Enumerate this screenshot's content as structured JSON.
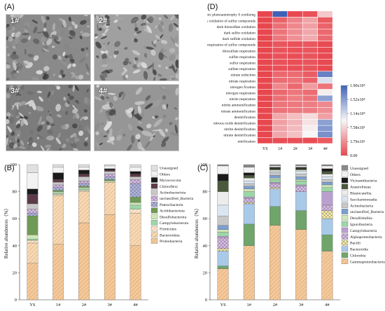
{
  "panels": {
    "a_label": "(A)",
    "b_label": "(B)",
    "c_label": "(C)",
    "d_label": "(D)"
  },
  "sem": {
    "tiles": [
      {
        "id": "1#",
        "tone": "#8a8a8a"
      },
      {
        "id": "2#",
        "tone": "#a0a0a0"
      },
      {
        "id": "3#",
        "tone": "#7c7c7c"
      },
      {
        "id": "4#",
        "tone": "#969696"
      }
    ]
  },
  "chart_data": [
    {
      "panel": "D",
      "type": "heatmap",
      "columns": [
        "YS",
        "1#",
        "2#",
        "3#",
        "4#"
      ],
      "rows": [
        "anoxygenic photoautotrophy S oxidizing",
        "dark oxidation of sulfur compounds",
        "dark thiosulfate oxidation",
        "dark sulfur oxidation",
        "dark sulfide oxidation",
        "respiration of sulfur compounds",
        "thiosulfate respiration",
        "sulfite respiration",
        "sulfur respiration",
        "sulfate respiration",
        "nitrate reduction",
        "nitrate respiration",
        "nitrogen fixation",
        "nitrogen respiration",
        "nitrite respiration",
        "nitrite ammonification",
        "nitrate ammonification",
        "denitrification",
        "nitrous oxide denitrification",
        "nitrite denitrification",
        "nitrate denitrification",
        "nitrification"
      ],
      "values": [
        [
          0,
          19000,
          100,
          500,
          7000
        ],
        [
          0,
          1500,
          3200,
          5000,
          1000
        ],
        [
          0,
          2200,
          3500,
          4800,
          1500
        ],
        [
          0,
          2500,
          3800,
          5200,
          1800
        ],
        [
          0,
          2600,
          4000,
          5400,
          1900
        ],
        [
          0,
          800,
          600,
          900,
          200
        ],
        [
          0,
          700,
          500,
          800,
          200
        ],
        [
          0,
          600,
          400,
          700,
          150
        ],
        [
          0,
          600,
          450,
          750,
          150
        ],
        [
          0,
          500,
          400,
          650,
          120
        ],
        [
          0,
          1800,
          2000,
          1200,
          17000
        ],
        [
          0,
          2000,
          2400,
          1500,
          11000
        ],
        [
          0,
          3500,
          1800,
          4600,
          2500
        ],
        [
          0,
          1800,
          2600,
          2000,
          9000
        ],
        [
          0,
          2200,
          3000,
          2400,
          15000
        ],
        [
          0,
          2500,
          2700,
          3000,
          3600
        ],
        [
          0,
          2400,
          2800,
          2900,
          3800
        ],
        [
          0,
          5200,
          6400,
          8000,
          4800
        ],
        [
          0,
          4800,
          6000,
          8400,
          15000
        ],
        [
          0,
          5000,
          6200,
          9000,
          15500
        ],
        [
          0,
          5200,
          6600,
          9500,
          16000
        ],
        [
          0,
          400,
          500,
          300,
          1000
        ]
      ],
      "colorbar": {
        "ticks": [
          "1.90x10⁴",
          "1.52x10⁴",
          "1.14x10⁴",
          "7.58x10³",
          "3.79x10³",
          "0.00"
        ],
        "min": 0,
        "max": 19000,
        "color_low": "#e8474f",
        "color_mid": "#f7f7f7",
        "color_high": "#3f62b7"
      }
    },
    {
      "panel": "B",
      "type": "bar",
      "stacked": true,
      "categories": [
        "YS",
        "1#",
        "2#",
        "3#",
        "4#"
      ],
      "ylabel": "Relative abundences（%）",
      "ylim": [
        0,
        100
      ],
      "yticks": [
        0,
        20,
        40,
        60,
        80,
        100
      ],
      "legend_placement": "right",
      "series": [
        {
          "name": "Proteobacteria",
          "color": "#f5c99a",
          "pattern": "diag",
          "values": [
            27,
            41,
            57,
            63,
            40
          ]
        },
        {
          "name": "Bacteroidota",
          "color": "#f8d9b4",
          "pattern": "diag",
          "values": [
            15,
            36,
            23,
            24,
            24
          ]
        },
        {
          "name": "Firmicutes",
          "color": "#fbe6cc",
          "pattern": "diag",
          "values": [
            2,
            1,
            1,
            0,
            3
          ]
        },
        {
          "name": "Campylobacterota",
          "color": "#9dd6a8",
          "pattern": "none",
          "values": [
            1,
            1,
            1,
            0,
            3
          ]
        },
        {
          "name": "Desulfobacterota",
          "color": "#cfe6b8",
          "pattern": "none",
          "values": [
            3,
            1,
            1,
            1,
            2
          ]
        },
        {
          "name": "Acidobacteriota",
          "color": "#6f9a55",
          "pattern": "none",
          "values": [
            14,
            1,
            1,
            1,
            4
          ]
        },
        {
          "name": "Patescibacteria",
          "color": "#aeb6d8",
          "pattern": "cross",
          "values": [
            2,
            2,
            2,
            2,
            10
          ]
        },
        {
          "name": "unclassified_Bacteria",
          "color": "#d7bce0",
          "pattern": "cross",
          "values": [
            3,
            2,
            2,
            2,
            3
          ]
        },
        {
          "name": "Actinobacteriota",
          "color": "#c8c8c8",
          "pattern": "none",
          "values": [
            4,
            2,
            3,
            2,
            2
          ]
        },
        {
          "name": "Chloroflexi",
          "color": "#5d3b4a",
          "pattern": "none",
          "values": [
            7,
            2,
            2,
            1,
            2
          ]
        },
        {
          "name": "Myxococcota",
          "color": "#1a1a1a",
          "pattern": "none",
          "values": [
            4,
            5,
            3,
            1,
            2
          ]
        },
        {
          "name": "Others",
          "color": "#f2f2f2",
          "pattern": "none",
          "values": [
            12,
            4,
            2,
            2,
            3
          ]
        },
        {
          "name": "Unassigned",
          "color": "#e0e0e0",
          "pattern": "none",
          "values": [
            6,
            2,
            2,
            1,
            2
          ]
        }
      ]
    },
    {
      "panel": "C",
      "type": "bar",
      "stacked": true,
      "categories": [
        "YS",
        "1#",
        "2#",
        "3#",
        "4#"
      ],
      "ylabel": "Relative abundences（%）",
      "ylim": [
        0,
        100
      ],
      "yticks": [
        0,
        20,
        40,
        60,
        80,
        100
      ],
      "legend_placement": "right",
      "series": [
        {
          "name": "Gammaproteobacteria",
          "color": "#f5c99a",
          "pattern": "diag",
          "values": [
            23,
            40,
            55,
            52,
            36
          ]
        },
        {
          "name": "Chlorobia",
          "color": "#6fa56a",
          "pattern": "none",
          "values": [
            2,
            16,
            14,
            14,
            12
          ]
        },
        {
          "name": "Bacteroidia",
          "color": "#a9c9e8",
          "pattern": "none",
          "values": [
            11,
            15,
            13,
            14,
            12
          ]
        },
        {
          "name": "Bacilli",
          "color": "#f4ee9a",
          "pattern": "cross",
          "values": [
            2,
            1,
            1,
            0,
            6
          ]
        },
        {
          "name": "Alphaproteobacteria",
          "color": "#d7bce0",
          "pattern": "cross",
          "values": [
            8,
            3,
            3,
            4,
            4
          ]
        },
        {
          "name": "Campylobacteria",
          "color": "#b9a0cf",
          "pattern": "none",
          "values": [
            1,
            1,
            1,
            1,
            10
          ]
        },
        {
          "name": "Ignavibacteria",
          "color": "#9dd6a8",
          "pattern": "none",
          "values": [
            3,
            4,
            2,
            3,
            3
          ]
        },
        {
          "name": "Desulfobulbia",
          "color": "#cfe6b8",
          "pattern": "none",
          "values": [
            2,
            2,
            1,
            1,
            2
          ]
        },
        {
          "name": "unclassified_Bacteria",
          "color": "#7b9fd0",
          "pattern": "none",
          "values": [
            3,
            2,
            2,
            2,
            2
          ]
        },
        {
          "name": "Actinobacteria",
          "color": "#c8c8c8",
          "pattern": "none",
          "values": [
            7,
            2,
            2,
            2,
            2
          ]
        },
        {
          "name": "Saccharimonadia",
          "color": "#d9e6f2",
          "pattern": "none",
          "values": [
            8,
            2,
            1,
            2,
            2
          ]
        },
        {
          "name": "Blastocatellia",
          "color": "#ececec",
          "pattern": "none",
          "values": [
            10,
            2,
            1,
            1,
            2
          ]
        },
        {
          "name": "Anaerolineae",
          "color": "#4b5a3c",
          "pattern": "none",
          "values": [
            8,
            2,
            1,
            1,
            2
          ]
        },
        {
          "name": "Vicinamibacteria",
          "color": "#1a1a1a",
          "pattern": "none",
          "values": [
            5,
            2,
            1,
            1,
            2
          ]
        },
        {
          "name": "Others",
          "color": "#f2f2f2",
          "pattern": "none",
          "values": [
            6,
            4,
            1,
            1,
            2
          ]
        },
        {
          "name": "Unassigned",
          "color": "#8a8a8a",
          "pattern": "none",
          "values": [
            1,
            2,
            1,
            1,
            1
          ]
        }
      ]
    }
  ]
}
